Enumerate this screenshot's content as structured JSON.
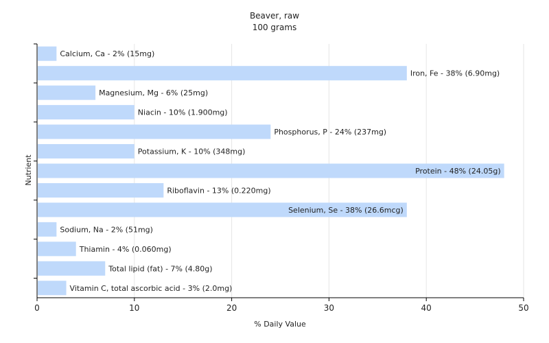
{
  "chart_data": {
    "type": "bar",
    "orientation": "horizontal",
    "title": "Beaver, raw",
    "subtitle": "100 grams",
    "xlabel": "% Daily Value",
    "ylabel": "Nutrient",
    "xlim": [
      0,
      50
    ],
    "xticks": [
      0,
      10,
      20,
      30,
      40,
      50
    ],
    "grid": true,
    "bar_color": "#bfd9fb",
    "categories": [
      "Calcium, Ca",
      "Iron, Fe",
      "Magnesium, Mg",
      "Niacin",
      "Phosphorus, P",
      "Potassium, K",
      "Protein",
      "Riboflavin",
      "Selenium, Se",
      "Sodium, Na",
      "Thiamin",
      "Total lipid (fat)",
      "Vitamin C, total ascorbic acid"
    ],
    "values": [
      2,
      38,
      6,
      10,
      24,
      10,
      48,
      13,
      38,
      2,
      4,
      7,
      3
    ],
    "labels": [
      "Calcium, Ca - 2% (15mg)",
      "Iron, Fe - 38% (6.90mg)",
      "Magnesium, Mg - 6% (25mg)",
      "Niacin - 10% (1.900mg)",
      "Phosphorus, P - 24% (237mg)",
      "Potassium, K - 10% (348mg)",
      "Protein - 48% (24.05g)",
      "Riboflavin - 13% (0.220mg)",
      "Selenium, Se - 38% (26.6mcg)",
      "Sodium, Na - 2% (51mg)",
      "Thiamin - 4% (0.060mg)",
      "Total lipid (fat) - 7% (4.80g)",
      "Vitamin C, total ascorbic acid - 3% (2.0mg)"
    ]
  }
}
